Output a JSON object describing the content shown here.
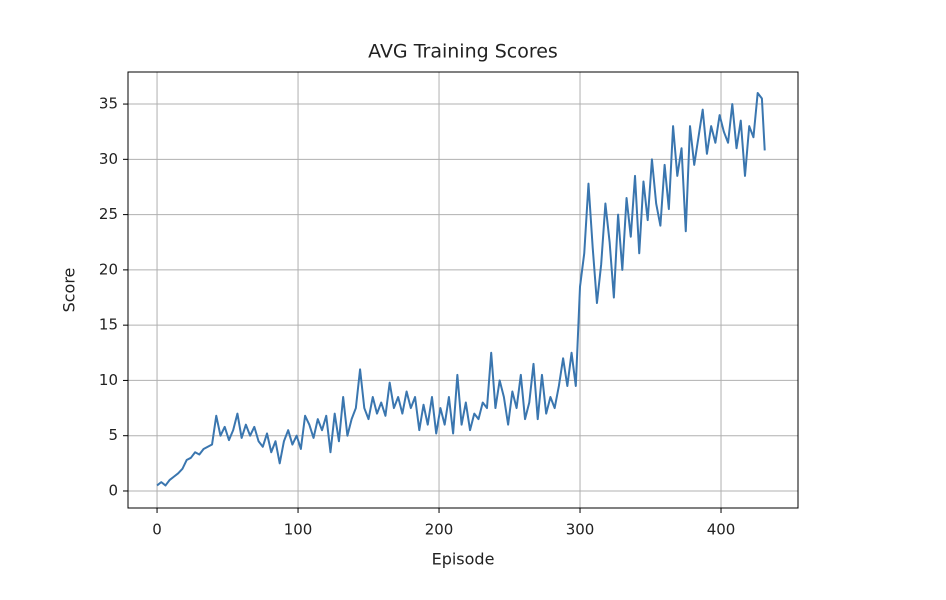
{
  "chart_data": {
    "type": "line",
    "title": "AVG Training Scores",
    "x_label": "Episode",
    "y_label": "Score",
    "x": [
      0,
      3,
      6,
      9,
      12,
      15,
      18,
      21,
      24,
      27,
      30,
      33,
      36,
      39,
      42,
      45,
      48,
      51,
      54,
      57,
      60,
      63,
      66,
      69,
      72,
      75,
      78,
      81,
      84,
      87,
      90,
      93,
      96,
      99,
      102,
      105,
      108,
      111,
      114,
      117,
      120,
      123,
      126,
      129,
      132,
      135,
      138,
      141,
      144,
      147,
      150,
      153,
      156,
      159,
      162,
      165,
      168,
      171,
      174,
      177,
      180,
      183,
      186,
      189,
      192,
      195,
      198,
      201,
      204,
      207,
      210,
      213,
      216,
      219,
      222,
      225,
      228,
      231,
      234,
      237,
      240,
      243,
      246,
      249,
      252,
      255,
      258,
      261,
      264,
      267,
      270,
      273,
      276,
      279,
      282,
      285,
      288,
      291,
      294,
      297,
      300,
      303,
      306,
      309,
      312,
      315,
      318,
      321,
      324,
      327,
      330,
      333,
      336,
      339,
      342,
      345,
      348,
      351,
      354,
      357,
      360,
      363,
      366,
      369,
      372,
      375,
      378,
      381,
      384,
      387,
      390,
      393,
      396,
      399,
      402,
      405,
      408,
      411,
      414,
      417,
      420,
      423,
      426,
      429,
      431
    ],
    "series": [
      {
        "name": "Score",
        "color": "#3a76af",
        "values": [
          0.5,
          0.8,
          0.5,
          1.0,
          1.3,
          1.6,
          2.0,
          2.8,
          3.0,
          3.5,
          3.3,
          3.8,
          4.0,
          4.2,
          6.8,
          5.0,
          5.8,
          4.6,
          5.5,
          7.0,
          4.8,
          6.0,
          5.0,
          5.8,
          4.5,
          4.0,
          5.2,
          3.5,
          4.5,
          2.5,
          4.5,
          5.5,
          4.2,
          5.0,
          3.8,
          6.8,
          6.0,
          4.8,
          6.5,
          5.5,
          6.8,
          3.5,
          7.0,
          4.5,
          8.5,
          5.0,
          6.5,
          7.5,
          11.0,
          7.5,
          6.5,
          8.5,
          7.0,
          8.0,
          6.8,
          9.8,
          7.5,
          8.5,
          7.0,
          9.0,
          7.5,
          8.5,
          5.5,
          7.8,
          6.0,
          8.5,
          5.2,
          7.5,
          6.0,
          8.5,
          5.2,
          10.5,
          6.0,
          8.0,
          5.5,
          7.0,
          6.5,
          8.0,
          7.5,
          12.5,
          7.5,
          10.0,
          8.5,
          6.0,
          9.0,
          7.5,
          10.5,
          6.5,
          8.0,
          11.5,
          6.5,
          10.5,
          7.0,
          8.5,
          7.5,
          9.5,
          12.0,
          9.5,
          12.5,
          9.5,
          18.5,
          21.5,
          27.8,
          22.0,
          17.0,
          20.5,
          26.0,
          22.5,
          17.5,
          25.0,
          20.0,
          26.5,
          23.0,
          28.5,
          21.5,
          28.0,
          24.5,
          30.0,
          26.0,
          24.0,
          29.5,
          25.5,
          33.0,
          28.5,
          31.0,
          23.5,
          33.0,
          29.5,
          32.0,
          34.5,
          30.5,
          33.0,
          31.5,
          34.0,
          32.5,
          31.5,
          35.0,
          31.0,
          33.5,
          28.5,
          33.0,
          32.0,
          36.0,
          35.5,
          30.8
        ]
      }
    ],
    "xlim": [
      -20.6,
      454.6
    ],
    "ylim": [
      -1.54,
      37.9
    ],
    "xticks": [
      0,
      100,
      200,
      300,
      400
    ],
    "yticks": [
      0,
      5,
      10,
      15,
      20,
      25,
      30,
      35
    ],
    "grid": true
  }
}
